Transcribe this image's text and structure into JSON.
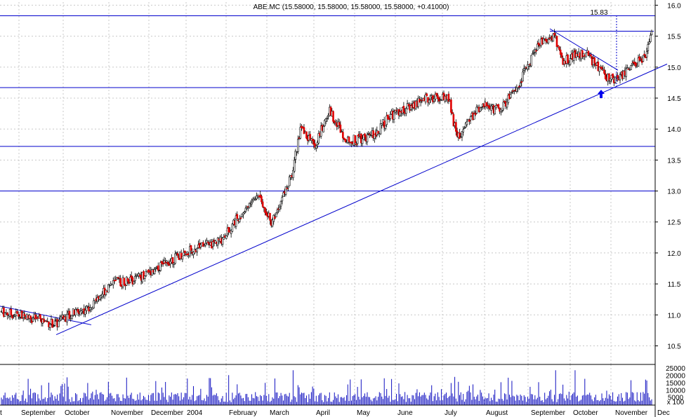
{
  "chart_data": {
    "type": "candlestick",
    "title": "ABE.MC (15.58000, 15.58000, 15.58000, 15.58000, +0.41000)",
    "price_axis": {
      "range": [
        10.2,
        16.05
      ],
      "ticks": [
        "16.0",
        "15.5",
        "15.0",
        "14.5",
        "14.0",
        "13.5",
        "13.0",
        "12.5",
        "12.0",
        "11.5",
        "11.0",
        "10.5"
      ],
      "gridlines": true,
      "side": "right"
    },
    "volume_axis": {
      "range": [
        0,
        28000
      ],
      "ticks": [
        "25000",
        "20000",
        "15000",
        "10000",
        "5000"
      ],
      "unit_label": "x 100"
    },
    "time_axis": {
      "labels": [
        "t",
        "September",
        "October",
        "November",
        "December",
        "2004",
        "February",
        "March",
        "April",
        "May",
        "June",
        "July",
        "August",
        "September",
        "October",
        "November",
        "Dec"
      ]
    },
    "annotations": {
      "target_label": "15.83",
      "horizontal_levels": [
        15.83,
        14.67,
        13.72,
        13.0
      ],
      "resistance_top": 15.58
    },
    "anchors": [
      {
        "d": 0,
        "p": 11.05
      },
      {
        "d": 25,
        "p": 10.95
      },
      {
        "d": 45,
        "p": 10.85
      },
      {
        "d": 55,
        "p": 11.0
      },
      {
        "d": 70,
        "p": 11.1
      },
      {
        "d": 90,
        "p": 11.5
      },
      {
        "d": 110,
        "p": 11.58
      },
      {
        "d": 150,
        "p": 12.0
      },
      {
        "d": 180,
        "p": 12.2
      },
      {
        "d": 195,
        "p": 12.6
      },
      {
        "d": 212,
        "p": 12.95
      },
      {
        "d": 222,
        "p": 12.5
      },
      {
        "d": 238,
        "p": 13.2
      },
      {
        "d": 246,
        "p": 14.0
      },
      {
        "d": 258,
        "p": 13.75
      },
      {
        "d": 270,
        "p": 14.3
      },
      {
        "d": 285,
        "p": 13.8
      },
      {
        "d": 305,
        "p": 13.9
      },
      {
        "d": 320,
        "p": 14.2
      },
      {
        "d": 350,
        "p": 14.5
      },
      {
        "d": 368,
        "p": 14.5
      },
      {
        "d": 375,
        "p": 13.85
      },
      {
        "d": 395,
        "p": 14.4
      },
      {
        "d": 410,
        "p": 14.3
      },
      {
        "d": 425,
        "p": 14.7
      },
      {
        "d": 442,
        "p": 15.4
      },
      {
        "d": 455,
        "p": 15.5
      },
      {
        "d": 462,
        "p": 15.1
      },
      {
        "d": 480,
        "p": 15.25
      },
      {
        "d": 497,
        "p": 14.85
      },
      {
        "d": 508,
        "p": 14.8
      },
      {
        "d": 516,
        "p": 14.95
      },
      {
        "d": 530,
        "p": 15.2
      },
      {
        "d": 534,
        "p": 15.5
      }
    ]
  }
}
